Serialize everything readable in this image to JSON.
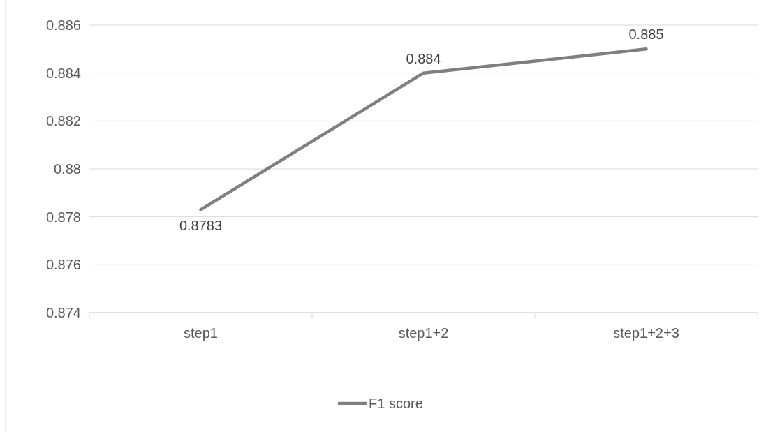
{
  "chart_data": {
    "type": "line",
    "categories": [
      "step1",
      "step1+2",
      "step1+2+3"
    ],
    "series": [
      {
        "name": "F1 score",
        "color": "#7f7f7f",
        "values": [
          0.8783,
          0.884,
          0.885
        ]
      }
    ],
    "ylim": [
      0.874,
      0.886
    ],
    "yticks": [
      0.874,
      0.876,
      0.878,
      0.88,
      0.882,
      0.884,
      0.886
    ],
    "grid": "y",
    "legend": "bottom",
    "data_labels": true,
    "marker": "none",
    "line_style": "solid"
  }
}
